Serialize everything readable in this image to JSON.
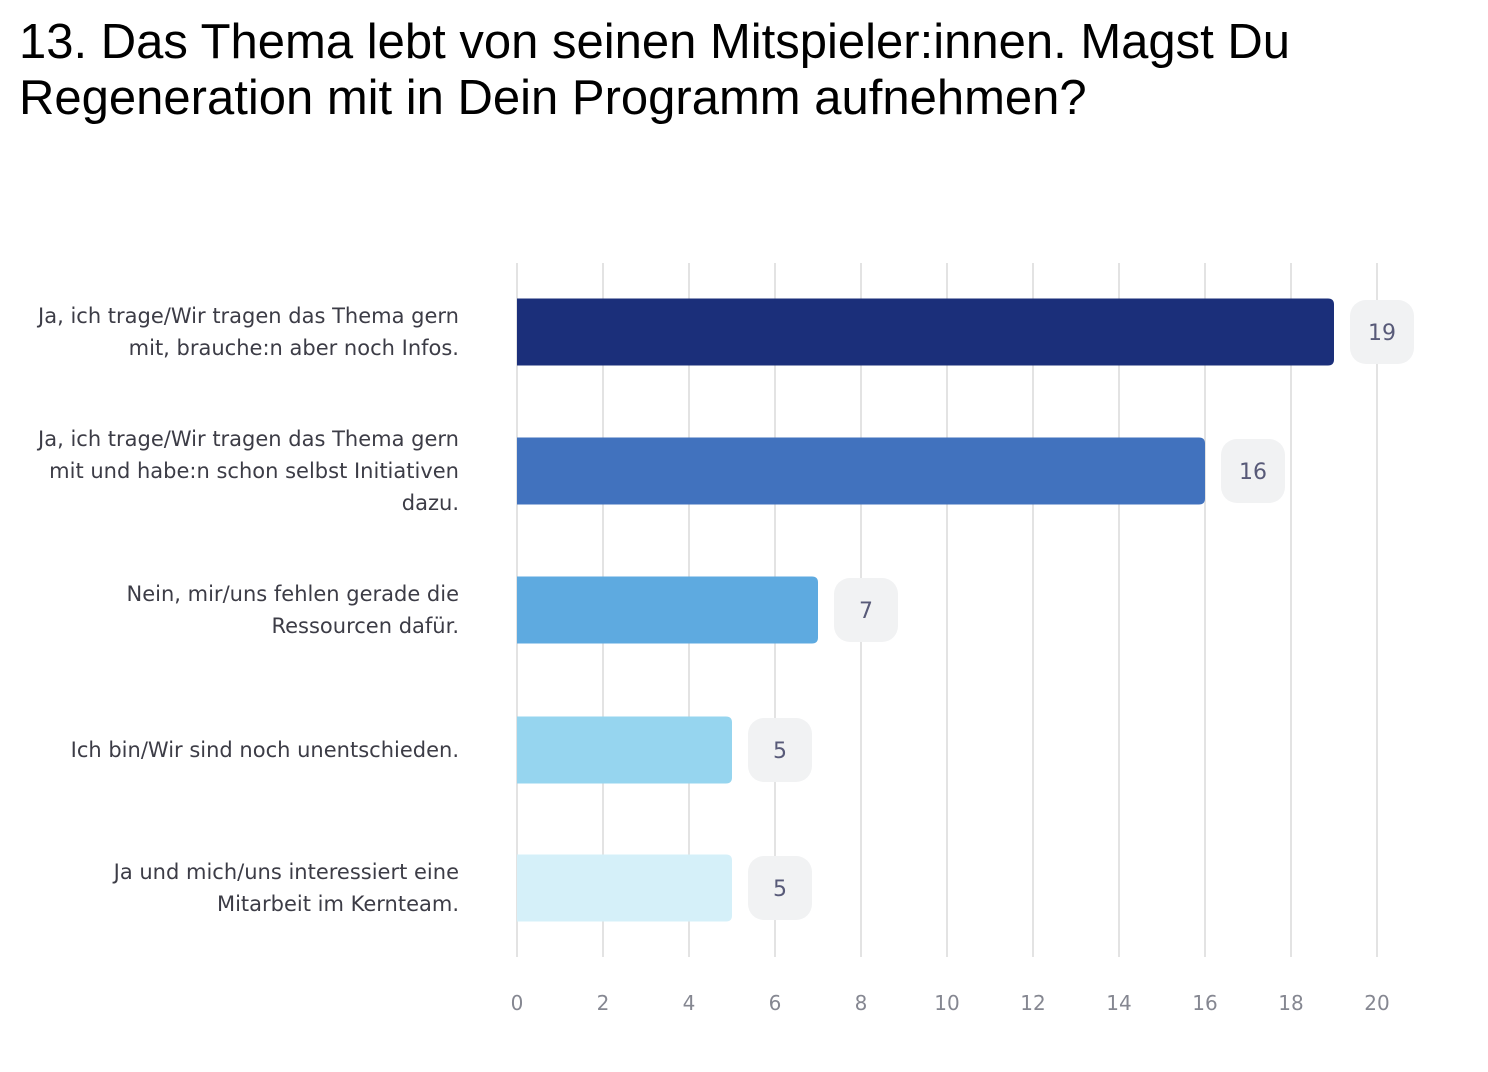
{
  "title": "13. Das Thema lebt von seinen Mitspieler:innen. Magst Du Regeneration mit in Dein Programm aufnehmen?",
  "chart_data": {
    "type": "bar",
    "orientation": "horizontal",
    "title": "13. Das Thema lebt von seinen Mitspieler:innen. Magst Du Regeneration mit in Dein Programm aufnehmen?",
    "xlabel": "",
    "ylabel": "",
    "categories": [
      "Ja, ich trage/Wir tragen das Thema gern mit, brauche:n aber noch Infos.",
      "Ja, ich trage/Wir tragen das Thema gern mit und habe:n schon selbst Initiativen dazu.",
      "Nein, mir/uns fehlen gerade die Ressourcen dafür.",
      "Ich bin/Wir sind noch unentschieden.",
      "Ja und mich/uns interessiert eine Mitarbeit im Kernteam."
    ],
    "values": [
      19,
      16,
      7,
      5,
      5
    ],
    "data_labels": [
      "19",
      "16",
      "7",
      "5",
      "5"
    ],
    "colors": [
      "#1b2f7a",
      "#4172be",
      "#5eaae0",
      "#96d5ef",
      "#d5f0f9"
    ],
    "xlim": [
      0,
      20
    ],
    "xticks": [
      "0",
      "2",
      "4",
      "6",
      "8",
      "10",
      "12",
      "14",
      "16",
      "18",
      "20"
    ],
    "grid": true,
    "legend": "none"
  }
}
